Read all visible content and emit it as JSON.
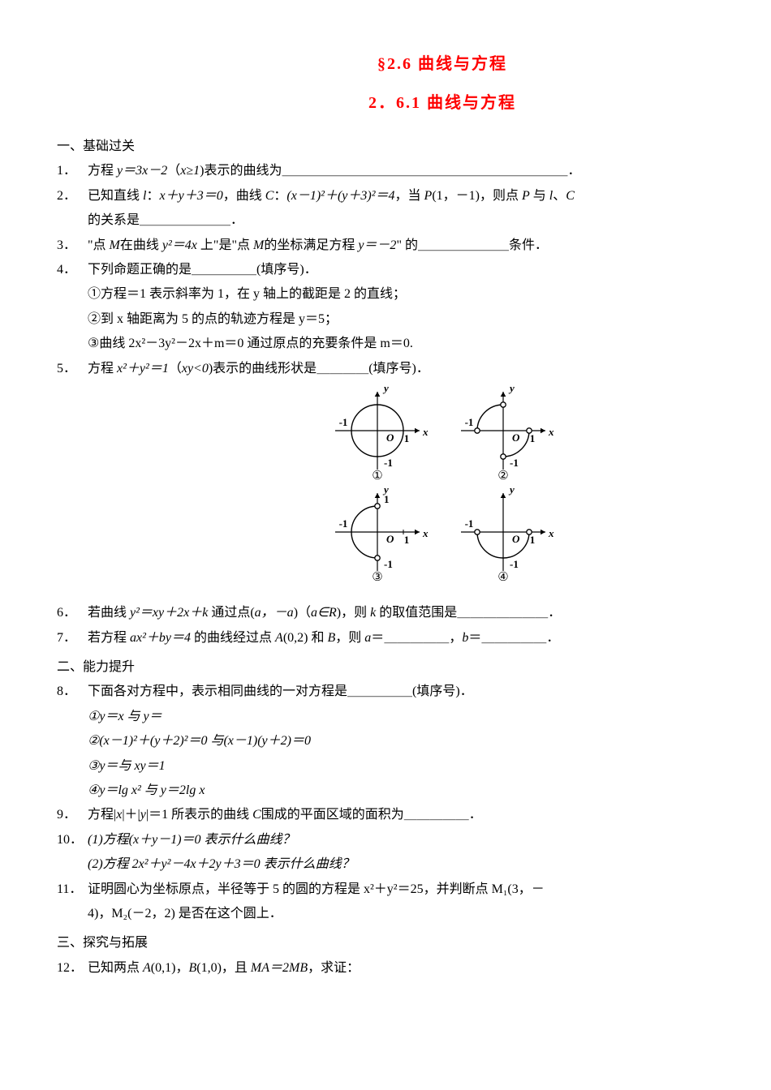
{
  "title": {
    "main": "§2.6  曲线与方程",
    "sub": "2．6.1  曲线与方程"
  },
  "sections": {
    "a": "一、基础过关",
    "b": "二、能力提升",
    "c": "三、探究与拓展"
  },
  "q1": {
    "num": "1．",
    "body_a": "方程 ",
    "eq": "y＝3x－2",
    "body_b": "（",
    "cond": "x≥1",
    "body_c": ")表示的曲线为",
    "blank": "＿＿＿＿＿＿＿＿＿＿＿＿＿＿＿＿＿＿＿＿＿＿",
    "end": "．"
  },
  "q2": {
    "num": "2．",
    "line1_a": "已知直线 ",
    "l": "l",
    "line1_b": "：",
    "eq1": "x＋y＋3＝0",
    "line1_c": "，曲线 ",
    "C": "C",
    "line1_d": "：",
    "eq2": "(x－1)²＋(y＋3)²＝4",
    "line1_e": "，当 ",
    "P": "P",
    "line1_f": "(1，－1)，则点 ",
    "P2": "P",
    "line1_g": " 与 ",
    "l2": "l",
    "line1_h": "、",
    "C2": "C",
    "line2_a": "的关系是",
    "blank": "＿＿＿＿＿＿＿",
    "end": "．"
  },
  "q3": {
    "num": "3．",
    "a": "\"点 ",
    "M": "M",
    "b": "在曲线 ",
    "eq1": "y²＝4x",
    "c": " 上\"是\"点 ",
    "M2": "M",
    "d": "的坐标满足方程 ",
    "eq2": "y＝－2",
    "e": "\" 的",
    "blank": "＿＿＿＿＿＿＿",
    "f": "条件．"
  },
  "q4": {
    "num": "4．",
    "head_a": "下列命题正确的是",
    "blank": "＿＿＿＿＿",
    "head_b": "(填序号)．",
    "o1": "①方程＝1 表示斜率为 1，在 y 轴上的截距是 2 的直线；",
    "o2": "②到 x 轴距离为 5 的点的轨迹方程是 y＝5；",
    "o3": "③曲线 2x²－3y²－2x＋m＝0 通过原点的充要条件是 m＝0."
  },
  "q5": {
    "num": "5．",
    "a": "方程 ",
    "eq": "x²＋y²＝1",
    "b": "（",
    "cond": "xy<0",
    "c": ")表示的曲线形状是",
    "blank": "＿＿＿＿",
    "d": "(填序号)．"
  },
  "q6": {
    "num": "6．",
    "a": "若曲线 ",
    "eq": "y²＝xy＋2x＋k",
    "b": " 通过点(",
    "p": "a，－a",
    "c": ")（",
    "cond": "a∈R",
    "d": ")，则 ",
    "k": "k",
    "e": " 的取值范围是",
    "blank": "＿＿＿＿＿＿＿",
    "end": "．"
  },
  "q7": {
    "num": "7．",
    "a": "若方程 ",
    "eq": "ax²＋by＝4",
    "b": " 的曲线经过点 ",
    "A": "A",
    "pa": "(0,2)",
    "c": " 和 ",
    "B": "B",
    "d": "，则 ",
    "av": "a",
    "e": "＝",
    "blank1": "＿＿＿＿＿",
    "f": "，",
    "bv": "b",
    "g": "＝",
    "blank2": "＿＿＿＿＿",
    "end": "．"
  },
  "q8": {
    "num": "8．",
    "head_a": "下面各对方程中，表示相同曲线的一对方程是",
    "blank": "＿＿＿＿＿",
    "head_b": "(填序号)．",
    "o1": "①y＝x 与 y＝",
    "o2": "②(x－1)²＋(y＋2)²＝0 与(x－1)(y＋2)＝0",
    "o3": "③y＝与 xy＝1",
    "o4": "④y＝lg x² 与 y＝2lg x"
  },
  "q9": {
    "num": "9．",
    "a": "方程|",
    "x": "x",
    "b": "|＋|",
    "y": "y",
    "c": "|＝1 所表示的曲线 ",
    "C": "C",
    "d": "围成的平面区域的面积为",
    "blank": "＿＿＿＿＿",
    "end": "．"
  },
  "q10": {
    "num": "10．",
    "p1": "(1)方程(x＋y－1)＝0 表示什么曲线？",
    "p2": "(2)方程 2x²＋y²－4x＋2y＋3＝0 表示什么曲线？"
  },
  "q11": {
    "num": "11．",
    "l1": "证明圆心为坐标原点，半径等于 5 的圆的方程是 x²＋y²＝25，并判断点 M₁(3，－",
    "l2": "4)，M₂(－2，2) 是否在这个圆上．"
  },
  "q12": {
    "num": "12．",
    "a": "已知两点 ",
    "A": "A",
    "pa": "(0,1)",
    "b": "，",
    "B": "B",
    "pb": "(1,0)",
    "c": "，且 ",
    "eq": "MA＝2MB",
    "d": "，求证："
  },
  "fig": {
    "labels": {
      "one": "①",
      "two": "②",
      "three": "③",
      "four": "④"
    },
    "axis": {
      "x": "x",
      "y": "y",
      "O": "O",
      "p1": "1",
      "n1": "-1"
    },
    "colors": {
      "axis": "#000000",
      "arc_stroke": "#000000",
      "bg": "#ffffff",
      "hollow_fill": "#ffffff"
    },
    "style": {
      "axis_width": 1.2,
      "arc_width": 1.4,
      "point_r": 3.2,
      "font_axis": 13,
      "font_label": 15,
      "arrow": 6
    },
    "cell_size": 150,
    "radius": 32
  }
}
